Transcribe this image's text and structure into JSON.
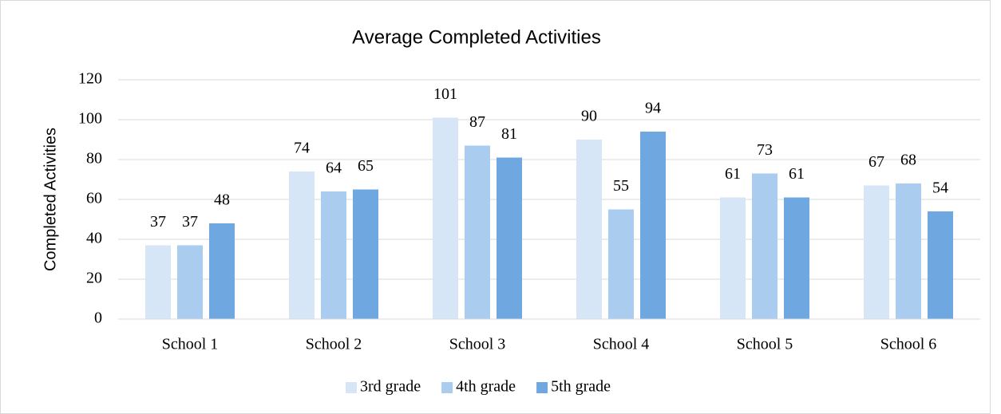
{
  "chart_data": {
    "type": "bar",
    "title": "Average Completed Activities",
    "y_label": "Completed Activities",
    "categories": [
      "School 1",
      "School 2",
      "School 3",
      "School 4",
      "School 5",
      "School 6"
    ],
    "series": [
      {
        "name": "3rd grade",
        "color": "#d6e6f7",
        "values": [
          37,
          74,
          101,
          90,
          61,
          67
        ]
      },
      {
        "name": "4th grade",
        "color": "#a9ccef",
        "values": [
          37,
          64,
          87,
          55,
          73,
          68
        ]
      },
      {
        "name": "5th grade",
        "color": "#6fa8e0",
        "values": [
          48,
          65,
          81,
          94,
          61,
          54
        ]
      }
    ],
    "ylim": [
      0,
      120
    ],
    "yticks": [
      0,
      20,
      40,
      60,
      80,
      100,
      120
    ],
    "grid": true,
    "legend": "bottom"
  }
}
